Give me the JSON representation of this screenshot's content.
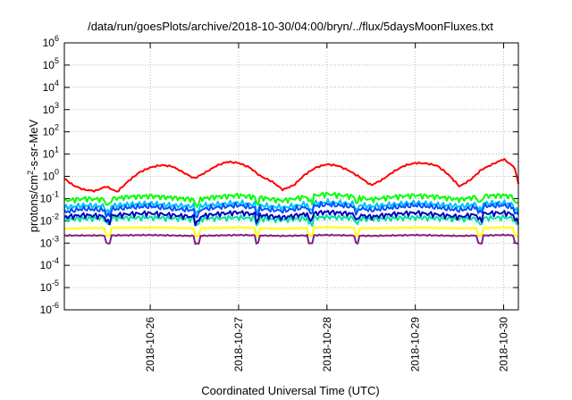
{
  "chart_data": {
    "type": "line",
    "title": "/data/run/goesPlots/archive/2018-10-30/04:00/bryn/../flux/5daysMoonFluxes.txt",
    "xlabel": "Coordinated Universal Time (UTC)",
    "ylabel": {
      "prefix": "protons/cm",
      "sup": "2",
      "suffix": "-s-sr-MeV"
    },
    "y_scale": "log",
    "ylim": [
      1e-06,
      1000000.0
    ],
    "xlim": [
      "2018-10-25T00:40",
      "2018-10-30T04:00"
    ],
    "grid": true,
    "legend": "none",
    "y_ticks": [
      {
        "value": 1e-06,
        "base": "10",
        "exp": "-6"
      },
      {
        "value": 1e-05,
        "base": "10",
        "exp": "-5"
      },
      {
        "value": 0.0001,
        "base": "10",
        "exp": "-4"
      },
      {
        "value": 0.001,
        "base": "10",
        "exp": "-3"
      },
      {
        "value": 0.01,
        "base": "10",
        "exp": "-2"
      },
      {
        "value": 0.1,
        "base": "10",
        "exp": "-1"
      },
      {
        "value": 1.0,
        "base": "10",
        "exp": "0"
      },
      {
        "value": 10.0,
        "base": "10",
        "exp": "1"
      },
      {
        "value": 100.0,
        "base": "10",
        "exp": "2"
      },
      {
        "value": 1000.0,
        "base": "10",
        "exp": "3"
      },
      {
        "value": 10000.0,
        "base": "10",
        "exp": "4"
      },
      {
        "value": 100000.0,
        "base": "10",
        "exp": "5"
      },
      {
        "value": 1000000.0,
        "base": "10",
        "exp": "6"
      }
    ],
    "x_ticks": [
      "2018-10-26",
      "2018-10-27",
      "2018-10-28",
      "2018-10-29",
      "2018-10-30"
    ],
    "series": [
      {
        "color": "#ff0000",
        "x": [
          "2018-10-25T00:40",
          "2018-10-25T03:00",
          "2018-10-25T06:00",
          "2018-10-25T09:00",
          "2018-10-25T12:00",
          "2018-10-25T15:00",
          "2018-10-25T18:00",
          "2018-10-25T21:00",
          "2018-10-26T00:00",
          "2018-10-26T03:00",
          "2018-10-26T06:00",
          "2018-10-26T09:00",
          "2018-10-26T12:00",
          "2018-10-26T15:00",
          "2018-10-26T18:00",
          "2018-10-26T21:00",
          "2018-10-27T00:00",
          "2018-10-27T03:00",
          "2018-10-27T06:00",
          "2018-10-27T09:00",
          "2018-10-27T12:00",
          "2018-10-27T15:00",
          "2018-10-27T18:00",
          "2018-10-27T21:00",
          "2018-10-28T00:00",
          "2018-10-28T03:00",
          "2018-10-28T06:00",
          "2018-10-28T09:00",
          "2018-10-28T12:00",
          "2018-10-28T15:00",
          "2018-10-28T18:00",
          "2018-10-28T21:00",
          "2018-10-29T00:00",
          "2018-10-29T03:00",
          "2018-10-29T06:00",
          "2018-10-29T09:00",
          "2018-10-29T12:00",
          "2018-10-29T15:00",
          "2018-10-29T18:00",
          "2018-10-29T21:00",
          "2018-10-30T00:00",
          "2018-10-30T03:00",
          "2018-10-30T04:00"
        ],
        "values": [
          0.8,
          0.4,
          0.25,
          0.22,
          0.35,
          0.2,
          0.6,
          1.5,
          2.5,
          3.2,
          2.8,
          1.5,
          0.8,
          1.5,
          3.0,
          4.5,
          4.0,
          2.5,
          1.0,
          0.6,
          0.25,
          0.4,
          1.2,
          2.5,
          3.5,
          3.0,
          1.8,
          0.9,
          0.4,
          0.7,
          1.6,
          3.0,
          4.0,
          3.8,
          3.0,
          1.2,
          0.35,
          0.7,
          2.0,
          3.5,
          6.0,
          2.5,
          0.45
        ]
      },
      {
        "color": "#00ff00",
        "x": [
          "2018-10-25T00:40",
          "2018-10-25T06:00",
          "2018-10-25T12:00",
          "2018-10-25T18:00",
          "2018-10-26T00:00",
          "2018-10-26T06:00",
          "2018-10-26T12:00",
          "2018-10-26T18:00",
          "2018-10-27T00:00",
          "2018-10-27T06:00",
          "2018-10-27T12:00",
          "2018-10-27T18:00",
          "2018-10-28T00:00",
          "2018-10-28T06:00",
          "2018-10-28T12:00",
          "2018-10-28T18:00",
          "2018-10-29T00:00",
          "2018-10-29T06:00",
          "2018-10-29T12:00",
          "2018-10-29T18:00",
          "2018-10-30T00:00",
          "2018-10-30T04:00"
        ],
        "values": [
          0.08,
          0.1,
          0.09,
          0.12,
          0.13,
          0.11,
          0.09,
          0.12,
          0.14,
          0.11,
          0.08,
          0.12,
          0.16,
          0.13,
          0.09,
          0.12,
          0.14,
          0.12,
          0.09,
          0.13,
          0.14,
          0.11
        ]
      },
      {
        "color": "#00c0ff",
        "x": [
          "2018-10-25T00:40",
          "2018-10-25T06:00",
          "2018-10-25T12:00",
          "2018-10-25T18:00",
          "2018-10-26T00:00",
          "2018-10-26T06:00",
          "2018-10-26T12:00",
          "2018-10-26T18:00",
          "2018-10-27T00:00",
          "2018-10-27T06:00",
          "2018-10-27T12:00",
          "2018-10-27T18:00",
          "2018-10-28T00:00",
          "2018-10-28T06:00",
          "2018-10-28T12:00",
          "2018-10-28T18:00",
          "2018-10-29T00:00",
          "2018-10-29T06:00",
          "2018-10-29T12:00",
          "2018-10-29T18:00",
          "2018-10-30T00:00",
          "2018-10-30T04:00"
        ],
        "values": [
          0.04,
          0.05,
          0.045,
          0.055,
          0.06,
          0.05,
          0.045,
          0.055,
          0.065,
          0.05,
          0.04,
          0.055,
          0.07,
          0.06,
          0.045,
          0.055,
          0.065,
          0.055,
          0.045,
          0.06,
          0.065,
          0.05
        ]
      },
      {
        "color": "#0050ff",
        "x": [
          "2018-10-25T00:40",
          "2018-10-25T06:00",
          "2018-10-25T12:00",
          "2018-10-25T18:00",
          "2018-10-26T00:00",
          "2018-10-26T06:00",
          "2018-10-26T12:00",
          "2018-10-26T18:00",
          "2018-10-27T00:00",
          "2018-10-27T06:00",
          "2018-10-27T12:00",
          "2018-10-27T18:00",
          "2018-10-28T00:00",
          "2018-10-28T06:00",
          "2018-10-28T12:00",
          "2018-10-28T18:00",
          "2018-10-29T00:00",
          "2018-10-29T06:00",
          "2018-10-29T12:00",
          "2018-10-29T18:00",
          "2018-10-30T00:00",
          "2018-10-30T04:00"
        ],
        "values": [
          0.025,
          0.035,
          0.03,
          0.04,
          0.045,
          0.035,
          0.03,
          0.04,
          0.05,
          0.035,
          0.028,
          0.04,
          0.055,
          0.045,
          0.03,
          0.04,
          0.05,
          0.04,
          0.03,
          0.045,
          0.05,
          0.035
        ]
      },
      {
        "color": "#00e0a0",
        "x": [
          "2018-10-25T00:40",
          "2018-10-25T12:00",
          "2018-10-26T00:00",
          "2018-10-26T12:00",
          "2018-10-27T00:00",
          "2018-10-27T12:00",
          "2018-10-28T00:00",
          "2018-10-28T12:00",
          "2018-10-29T00:00",
          "2018-10-29T12:00",
          "2018-10-30T00:00",
          "2018-10-30T04:00"
        ],
        "values": [
          0.012,
          0.013,
          0.014,
          0.012,
          0.014,
          0.011,
          0.015,
          0.012,
          0.014,
          0.012,
          0.014,
          0.013
        ]
      },
      {
        "color": "#0000c0",
        "x": [
          "2018-10-25T00:40",
          "2018-10-25T06:00",
          "2018-10-25T12:00",
          "2018-10-25T18:00",
          "2018-10-26T00:00",
          "2018-10-26T06:00",
          "2018-10-26T12:00",
          "2018-10-26T18:00",
          "2018-10-27T00:00",
          "2018-10-27T06:00",
          "2018-10-27T12:00",
          "2018-10-27T18:00",
          "2018-10-28T00:00",
          "2018-10-28T06:00",
          "2018-10-28T12:00",
          "2018-10-28T18:00",
          "2018-10-29T00:00",
          "2018-10-29T06:00",
          "2018-10-29T12:00",
          "2018-10-29T18:00",
          "2018-10-30T00:00",
          "2018-10-30T04:00"
        ],
        "values": [
          0.015,
          0.018,
          0.016,
          0.02,
          0.022,
          0.018,
          0.015,
          0.02,
          0.024,
          0.018,
          0.014,
          0.02,
          0.025,
          0.021,
          0.015,
          0.02,
          0.023,
          0.019,
          0.015,
          0.021,
          0.023,
          0.018
        ]
      },
      {
        "color": "#ffff00",
        "x": [
          "2018-10-25T00:40",
          "2018-10-25T12:00",
          "2018-10-26T00:00",
          "2018-10-26T12:00",
          "2018-10-27T00:00",
          "2018-10-27T12:00",
          "2018-10-28T00:00",
          "2018-10-28T12:00",
          "2018-10-29T00:00",
          "2018-10-29T12:00",
          "2018-10-30T00:00",
          "2018-10-30T04:00"
        ],
        "values": [
          0.0045,
          0.0048,
          0.005,
          0.0046,
          0.005,
          0.0044,
          0.0052,
          0.0046,
          0.005,
          0.0046,
          0.005,
          0.0048
        ]
      },
      {
        "color": "#802080",
        "x": [
          "2018-10-25T00:40",
          "2018-10-25T12:00",
          "2018-10-26T00:00",
          "2018-10-26T12:00",
          "2018-10-27T00:00",
          "2018-10-27T12:00",
          "2018-10-28T00:00",
          "2018-10-28T12:00",
          "2018-10-29T00:00",
          "2018-10-29T12:00",
          "2018-10-30T00:00",
          "2018-10-30T04:00"
        ],
        "values": [
          0.0022,
          0.0022,
          0.0023,
          0.0021,
          0.0023,
          0.0021,
          0.0023,
          0.0021,
          0.0023,
          0.0021,
          0.0023,
          0.0022
        ]
      }
    ],
    "dips": [
      "2018-10-25T12:30",
      "2018-10-26T12:40",
      "2018-10-27T05:00",
      "2018-10-27T19:30",
      "2018-10-28T08:00",
      "2018-10-29T17:30",
      "2018-10-30T03:30"
    ]
  }
}
